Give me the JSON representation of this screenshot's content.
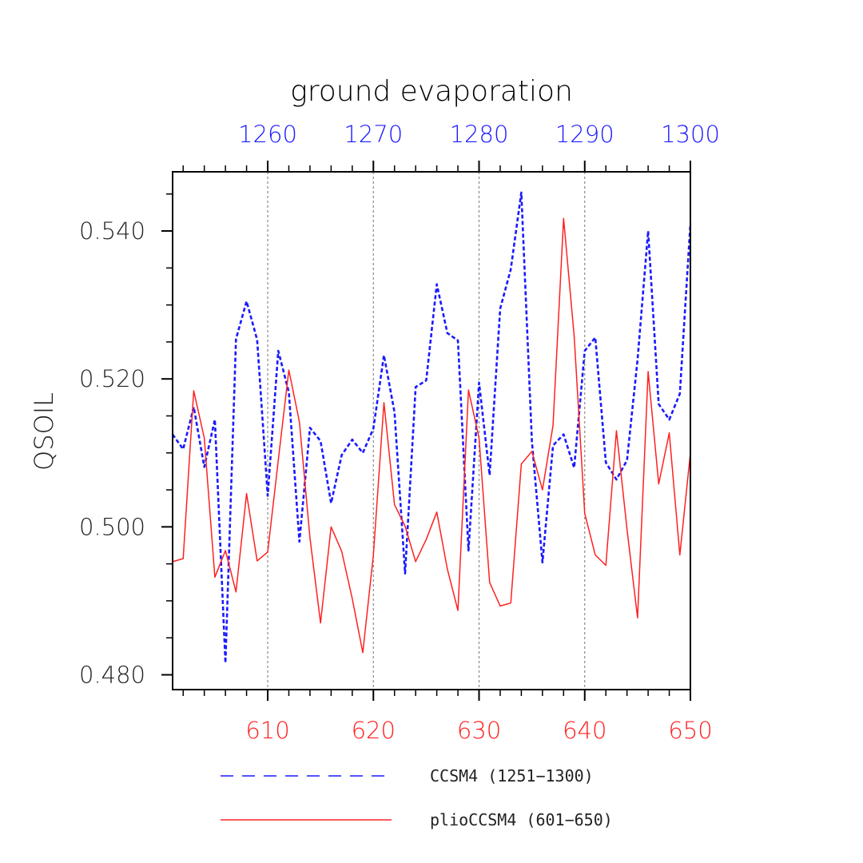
{
  "chart_data": {
    "type": "line",
    "title": "ground evaporation",
    "ylabel": "QSOIL",
    "ylim": [
      0.478,
      0.548
    ],
    "y_ticks": [
      0.48,
      0.5,
      0.52,
      0.54
    ],
    "y_tick_labels": [
      "0.480",
      "0.500",
      "0.520",
      "0.540"
    ],
    "x_bottom": {
      "range": [
        601,
        650
      ],
      "ticks": [
        610,
        620,
        630,
        640,
        650
      ],
      "tick_labels": [
        "610",
        "620",
        "630",
        "640",
        "650"
      ],
      "color": "#ff2020"
    },
    "x_top": {
      "range": [
        1251,
        1300
      ],
      "ticks": [
        1260,
        1270,
        1280,
        1290,
        1300
      ],
      "tick_labels": [
        "1260",
        "1270",
        "1280",
        "1290",
        "1300"
      ],
      "color": "#1a1aff"
    },
    "gridlines_x": [
      610,
      620,
      630,
      640
    ],
    "series": [
      {
        "name": "CCSM4 (1251-1300)",
        "axis": "top",
        "style": "dashed",
        "color": "#1a1aff",
        "x": [
          1251,
          1252,
          1253,
          1254,
          1255,
          1256,
          1257,
          1258,
          1259,
          1260,
          1261,
          1262,
          1263,
          1264,
          1265,
          1266,
          1267,
          1268,
          1269,
          1270,
          1271,
          1272,
          1273,
          1274,
          1275,
          1276,
          1277,
          1278,
          1279,
          1280,
          1281,
          1282,
          1283,
          1284,
          1285,
          1286,
          1287,
          1288,
          1289,
          1290,
          1291,
          1292,
          1293,
          1294,
          1295,
          1296,
          1297,
          1298,
          1299,
          1300
        ],
        "values": [
          0.5125,
          0.5105,
          0.5162,
          0.5081,
          0.5145,
          0.4816,
          0.5254,
          0.5305,
          0.5253,
          0.5042,
          0.5238,
          0.5182,
          0.498,
          0.5134,
          0.5116,
          0.5032,
          0.5097,
          0.5118,
          0.51,
          0.5133,
          0.5232,
          0.5155,
          0.4937,
          0.5189,
          0.5198,
          0.5328,
          0.5262,
          0.5252,
          0.4968,
          0.5195,
          0.507,
          0.5295,
          0.5348,
          0.5452,
          0.5116,
          0.4952,
          0.511,
          0.5125,
          0.508,
          0.5238,
          0.5256,
          0.5087,
          0.5064,
          0.509,
          0.5226,
          0.54,
          0.5166,
          0.5145,
          0.518,
          0.541
        ]
      },
      {
        "name": "plioCCSM4 (601-650)",
        "axis": "bottom",
        "style": "solid",
        "color": "#ff2020",
        "x": [
          601,
          602,
          603,
          604,
          605,
          606,
          607,
          608,
          609,
          610,
          611,
          612,
          613,
          614,
          615,
          616,
          617,
          618,
          619,
          620,
          621,
          622,
          623,
          624,
          625,
          626,
          627,
          628,
          629,
          630,
          631,
          632,
          633,
          634,
          635,
          636,
          637,
          638,
          639,
          640,
          641,
          642,
          643,
          644,
          645,
          646,
          647,
          648,
          649,
          650
        ],
        "values": [
          0.4953,
          0.4957,
          0.5184,
          0.512,
          0.4932,
          0.4968,
          0.4912,
          0.5045,
          0.4954,
          0.4966,
          0.509,
          0.5212,
          0.5142,
          0.4985,
          0.487,
          0.5,
          0.4967,
          0.4903,
          0.483,
          0.4962,
          0.5168,
          0.503,
          0.5001,
          0.4953,
          0.4983,
          0.502,
          0.4943,
          0.4887,
          0.5185,
          0.512,
          0.4925,
          0.4893,
          0.4897,
          0.5085,
          0.5102,
          0.505,
          0.5137,
          0.5417,
          0.5258,
          0.5018,
          0.4962,
          0.4948,
          0.513,
          0.4997,
          0.4877,
          0.521,
          0.5058,
          0.5127,
          0.4962,
          0.51
        ]
      }
    ],
    "legend": [
      {
        "label": "CCSM4 (1251−1300)",
        "style": "dashed",
        "color": "#1a1aff"
      },
      {
        "label": "plioCCSM4 (601−650)",
        "style": "solid",
        "color": "#ff2020"
      }
    ]
  }
}
